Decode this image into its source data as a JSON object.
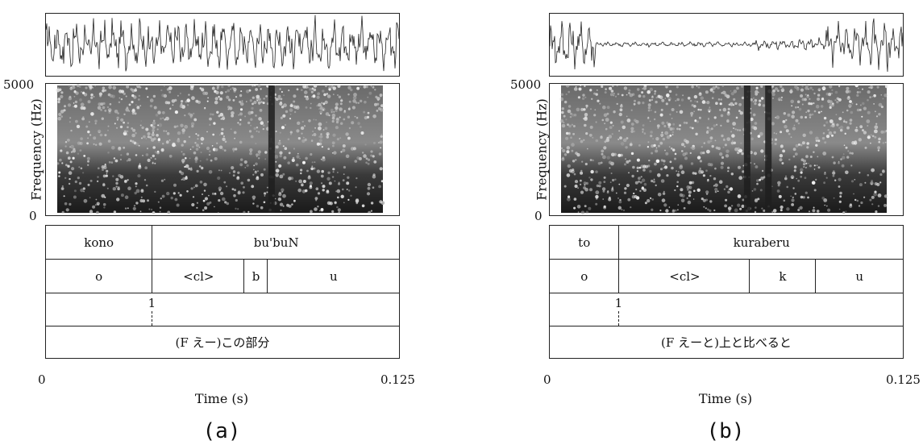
{
  "panels": [
    {
      "id": "a",
      "caption": "(a)",
      "y_axis": {
        "label": "Frequency (Hz)",
        "max": "5000",
        "min": "0"
      },
      "x_axis": {
        "label": "Time (s)",
        "start": "0",
        "end": "0.125"
      },
      "word_tier": [
        {
          "text": "kono",
          "start": 0.0,
          "end": 0.3
        },
        {
          "text": "bu'buN",
          "start": 0.3,
          "end": 1.0
        }
      ],
      "phone_tier": [
        {
          "text": "o",
          "start": 0.0,
          "end": 0.3
        },
        {
          "text": "<cl>",
          "start": 0.3,
          "end": 0.56
        },
        {
          "text": "b",
          "start": 0.56,
          "end": 0.625
        },
        {
          "text": "u",
          "start": 0.625,
          "end": 1.0
        }
      ],
      "tone_tier": [
        {
          "text": "1",
          "position": 0.3
        }
      ],
      "transcription": "(F えー)この部分",
      "waveform": {
        "quiet_segments": []
      },
      "spectrogram": {
        "dark_band_positions": [
          0.63
        ]
      }
    },
    {
      "id": "b",
      "caption": "(b)",
      "y_axis": {
        "label": "Frequency (Hz)",
        "max": "5000",
        "min": "0"
      },
      "x_axis": {
        "label": "Time (s)",
        "start": "0",
        "end": "0.125"
      },
      "word_tier": [
        {
          "text": "to",
          "start": 0.0,
          "end": 0.195
        },
        {
          "text": "kuraberu",
          "start": 0.195,
          "end": 1.0
        }
      ],
      "phone_tier": [
        {
          "text": "o",
          "start": 0.0,
          "end": 0.195
        },
        {
          "text": "<cl>",
          "start": 0.195,
          "end": 0.565
        },
        {
          "text": "k",
          "start": 0.565,
          "end": 0.75
        },
        {
          "text": "u",
          "start": 0.75,
          "end": 1.0
        }
      ],
      "tone_tier": [
        {
          "text": "1",
          "position": 0.195
        }
      ],
      "transcription": "(F えーと)上と比べると",
      "waveform": {
        "quiet_segments": [
          [
            0.13,
            0.78
          ]
        ]
      },
      "spectrogram": {
        "dark_band_positions": [
          0.55,
          0.61
        ]
      }
    }
  ]
}
